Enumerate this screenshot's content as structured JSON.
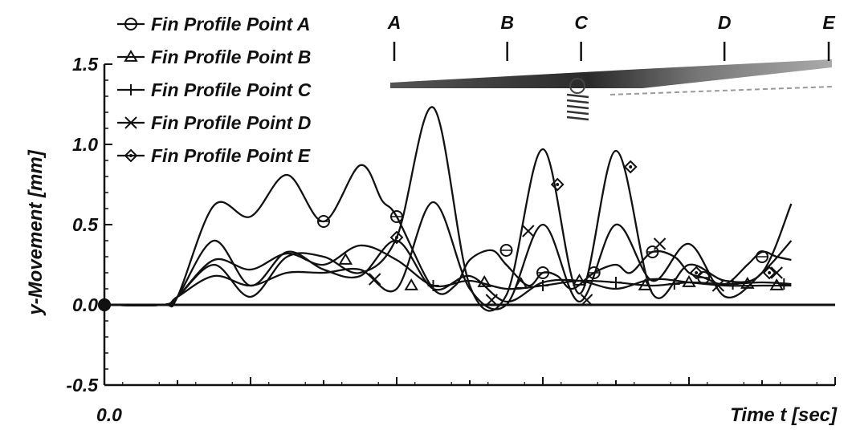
{
  "chart_data": {
    "type": "line",
    "xlabel": "Time t [sec]",
    "ylabel": "y-Movement [mm]",
    "x_tick_labels": [
      "0.0"
    ],
    "y_tick_labels": [
      "1.5",
      "1.0",
      "0.5",
      "0.0",
      "-0.5"
    ],
    "y_ticks": [
      1.5,
      1.0,
      0.5,
      0.0,
      -0.5
    ],
    "ylim": [
      -0.5,
      1.5
    ],
    "grid": false,
    "legend_position": "top-left",
    "x_unit_note": "x values are in fractions of the printed time-axis span (only 0.0 is labeled)",
    "xlim": [
      0,
      1
    ],
    "series": [
      {
        "name": "Fin Profile Point A",
        "marker": "circle-cross",
        "x": [
          0.0,
          0.08,
          0.1,
          0.15,
          0.2,
          0.25,
          0.3,
          0.35,
          0.38,
          0.4,
          0.45,
          0.48,
          0.5,
          0.53,
          0.55,
          0.58,
          0.6,
          0.62,
          0.64,
          0.67,
          0.7,
          0.72,
          0.75,
          0.78,
          0.8,
          0.82,
          0.85,
          0.88,
          0.9,
          0.92,
          0.94
        ],
        "y": [
          0.0,
          0.0,
          0.05,
          0.62,
          0.55,
          0.81,
          0.52,
          0.87,
          0.65,
          0.55,
          0.1,
          0.12,
          0.28,
          0.34,
          0.25,
          0.12,
          0.2,
          0.18,
          0.1,
          0.2,
          0.25,
          0.2,
          0.33,
          0.3,
          0.2,
          0.17,
          0.13,
          0.25,
          0.33,
          0.3,
          0.28
        ],
        "markers_x": [
          0.0,
          0.3,
          0.4,
          0.55,
          0.6,
          0.67,
          0.75,
          0.82,
          0.9
        ],
        "markers_y": [
          0.0,
          0.52,
          0.55,
          0.34,
          0.2,
          0.2,
          0.33,
          0.17,
          0.3
        ]
      },
      {
        "name": "Fin Profile Point B",
        "marker": "triangle",
        "x": [
          0.0,
          0.08,
          0.1,
          0.15,
          0.2,
          0.25,
          0.3,
          0.35,
          0.4,
          0.45,
          0.5,
          0.55,
          0.6,
          0.65,
          0.7,
          0.75,
          0.8,
          0.85,
          0.9,
          0.94
        ],
        "y": [
          0.0,
          0.0,
          0.05,
          0.4,
          0.12,
          0.33,
          0.22,
          0.18,
          0.4,
          0.1,
          0.18,
          0.02,
          0.14,
          0.15,
          0.1,
          0.16,
          0.14,
          0.12,
          0.12,
          0.12
        ],
        "markers_x": [
          0.33,
          0.42,
          0.52,
          0.57,
          0.65,
          0.74,
          0.8,
          0.88,
          0.92
        ],
        "markers_y": [
          0.28,
          0.12,
          0.14,
          0.13,
          0.15,
          0.12,
          0.14,
          0.13,
          0.12
        ]
      },
      {
        "name": "Fin Profile Point C",
        "marker": "plus",
        "x": [
          0.0,
          0.08,
          0.1,
          0.15,
          0.2,
          0.25,
          0.3,
          0.35,
          0.4,
          0.45,
          0.5,
          0.55,
          0.6,
          0.65,
          0.7,
          0.75,
          0.8,
          0.85,
          0.9,
          0.94
        ],
        "y": [
          0.0,
          0.0,
          0.05,
          0.28,
          0.22,
          0.32,
          0.25,
          0.37,
          0.28,
          0.12,
          0.15,
          0.1,
          0.12,
          0.15,
          0.14,
          0.12,
          0.14,
          0.13,
          0.14,
          0.13
        ],
        "markers_x": [
          0.45,
          0.6,
          0.7,
          0.78,
          0.86,
          0.93
        ],
        "markers_y": [
          0.12,
          0.12,
          0.14,
          0.13,
          0.13,
          0.13
        ]
      },
      {
        "name": "Fin Profile Point D",
        "marker": "x",
        "x": [
          0.0,
          0.08,
          0.1,
          0.15,
          0.2,
          0.25,
          0.3,
          0.35,
          0.4,
          0.45,
          0.5,
          0.55,
          0.6,
          0.65,
          0.7,
          0.75,
          0.8,
          0.85,
          0.9,
          0.94
        ],
        "y": [
          0.0,
          0.0,
          0.05,
          0.18,
          0.12,
          0.2,
          0.2,
          0.22,
          0.1,
          0.64,
          0.1,
          0.0,
          0.5,
          0.02,
          0.5,
          0.15,
          0.38,
          0.05,
          0.2,
          0.4
        ],
        "markers_x": [
          0.37,
          0.53,
          0.58,
          0.66,
          0.76,
          0.84,
          0.92
        ],
        "markers_y": [
          0.16,
          0.03,
          0.46,
          0.03,
          0.38,
          0.12,
          0.2
        ]
      },
      {
        "name": "Fin Profile Point E",
        "marker": "diamond",
        "x": [
          0.0,
          0.08,
          0.1,
          0.15,
          0.2,
          0.25,
          0.3,
          0.35,
          0.4,
          0.45,
          0.5,
          0.55,
          0.6,
          0.65,
          0.7,
          0.75,
          0.8,
          0.85,
          0.9,
          0.94
        ],
        "y": [
          0.0,
          0.0,
          0.05,
          0.25,
          0.05,
          0.3,
          0.3,
          0.2,
          0.42,
          1.23,
          0.12,
          0.06,
          0.97,
          0.07,
          0.96,
          0.07,
          0.25,
          0.15,
          0.2,
          0.63
        ],
        "markers_x": [
          0.4,
          0.62,
          0.72,
          0.81,
          0.91
        ],
        "markers_y": [
          0.42,
          0.75,
          0.86,
          0.2,
          0.2
        ]
      }
    ],
    "fin_inset": {
      "labels": [
        "A",
        "B",
        "C",
        "D",
        "E"
      ],
      "positions": [
        0.0,
        0.26,
        0.43,
        0.76,
        1.0
      ]
    }
  }
}
